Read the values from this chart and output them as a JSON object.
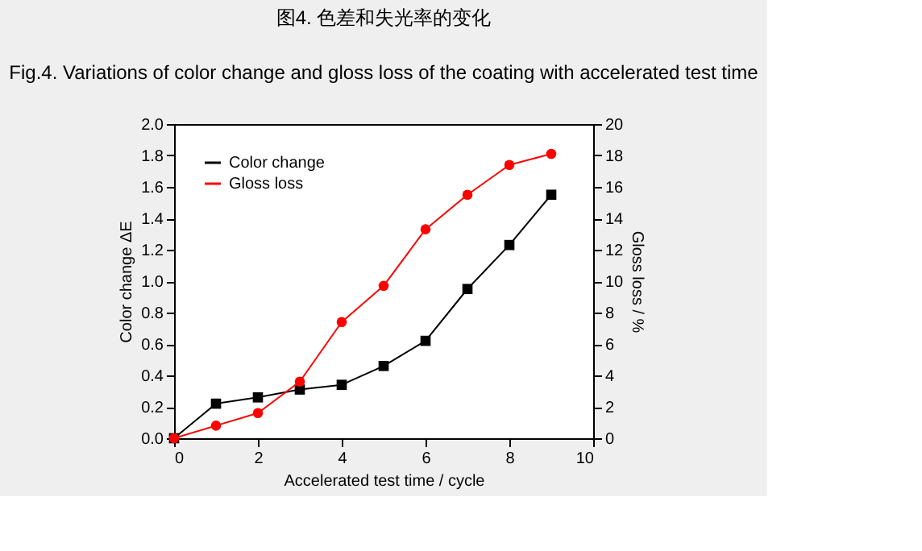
{
  "chart_data": {
    "type": "line",
    "title": "图4. 色差和失光率的变化",
    "subtitle": "Fig.4. Variations of color change and gloss loss of the coating with accelerated test time",
    "xlabel": "Accelerated test time / cycle",
    "ylabel": "Color change ΔE",
    "y2label": "Gloss loss / %",
    "x": [
      0,
      1,
      2,
      3,
      4,
      5,
      6,
      7,
      8,
      9
    ],
    "series": [
      {
        "name": "Color change",
        "color": "#000000",
        "marker": "square",
        "line_style": "solid",
        "values": [
          0,
          0.22,
          0.26,
          0.31,
          0.34,
          0.46,
          0.62,
          0.95,
          1.23,
          1.55
        ]
      },
      {
        "name": "Gloss loss",
        "color": "#ff0000",
        "marker": "circle",
        "axis": "y2",
        "line_style": "solid",
        "values": [
          0,
          0.8,
          1.6,
          3.6,
          7.4,
          9.7,
          13.3,
          15.5,
          17.4,
          18.1
        ]
      }
    ],
    "xlim": [
      0,
      10
    ],
    "xticks": [
      0,
      2,
      4,
      6,
      8,
      10
    ],
    "ylim": [
      0,
      2.0
    ],
    "yticks": [
      {
        "value": 0,
        "label": "0.0"
      },
      0.2,
      0.4,
      0.6,
      0.8,
      {
        "value": 1,
        "label": "1.0"
      },
      1.2,
      1.4,
      1.6,
      1.8,
      {
        "value": 2,
        "label": "2.0"
      }
    ],
    "y2lim": [
      0,
      20
    ],
    "y2ticks": [
      0,
      2,
      4,
      6,
      8,
      10,
      12,
      14,
      16,
      18,
      20
    ],
    "legend": "top left",
    "grid": false
  }
}
